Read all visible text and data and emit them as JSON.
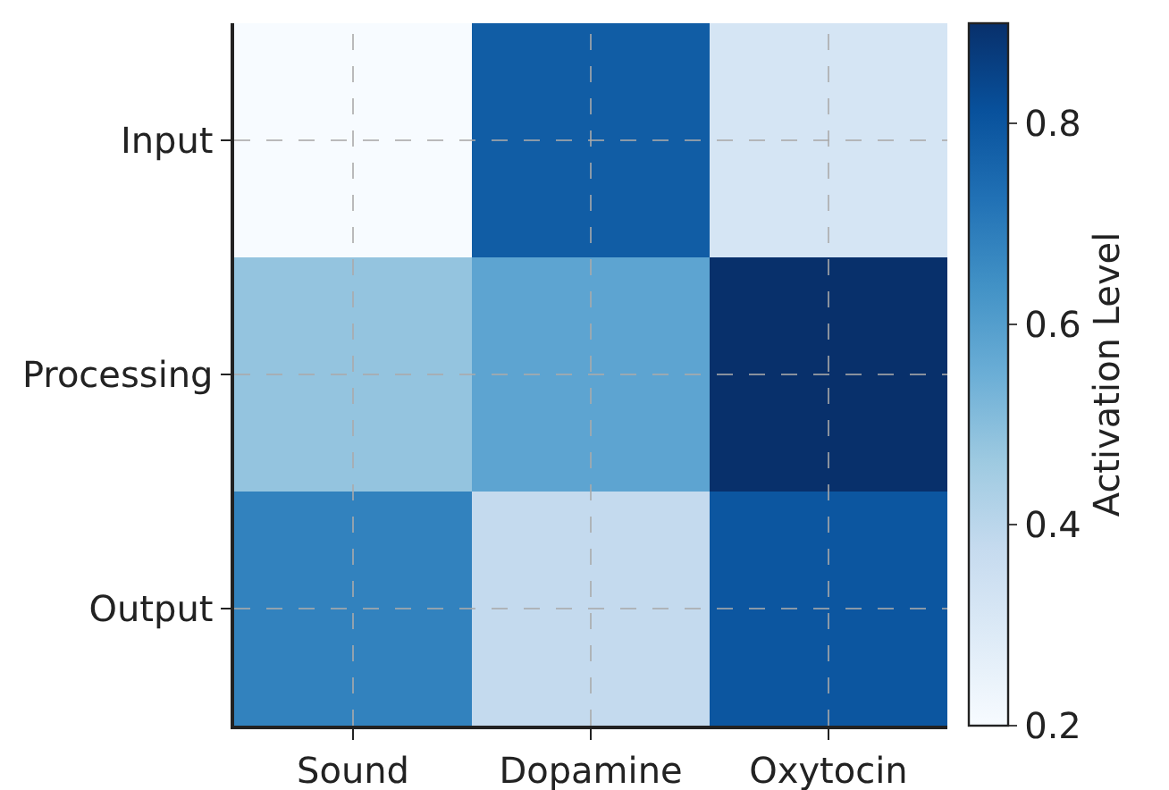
{
  "chart_data": {
    "type": "heatmap",
    "clabel": "Activation Level",
    "categories": [
      "Sound",
      "Dopamine",
      "Oxytocin"
    ],
    "y_categories": [
      "Input",
      "Processing",
      "Output"
    ],
    "cells": [
      [
        0.2,
        0.78,
        0.32
      ],
      [
        0.48,
        0.58,
        0.9
      ],
      [
        0.68,
        0.38,
        0.8
      ]
    ],
    "clim": [
      0.2,
      0.9
    ],
    "cticks": [
      0.2,
      0.4,
      0.6,
      0.8
    ],
    "grid": true
  }
}
